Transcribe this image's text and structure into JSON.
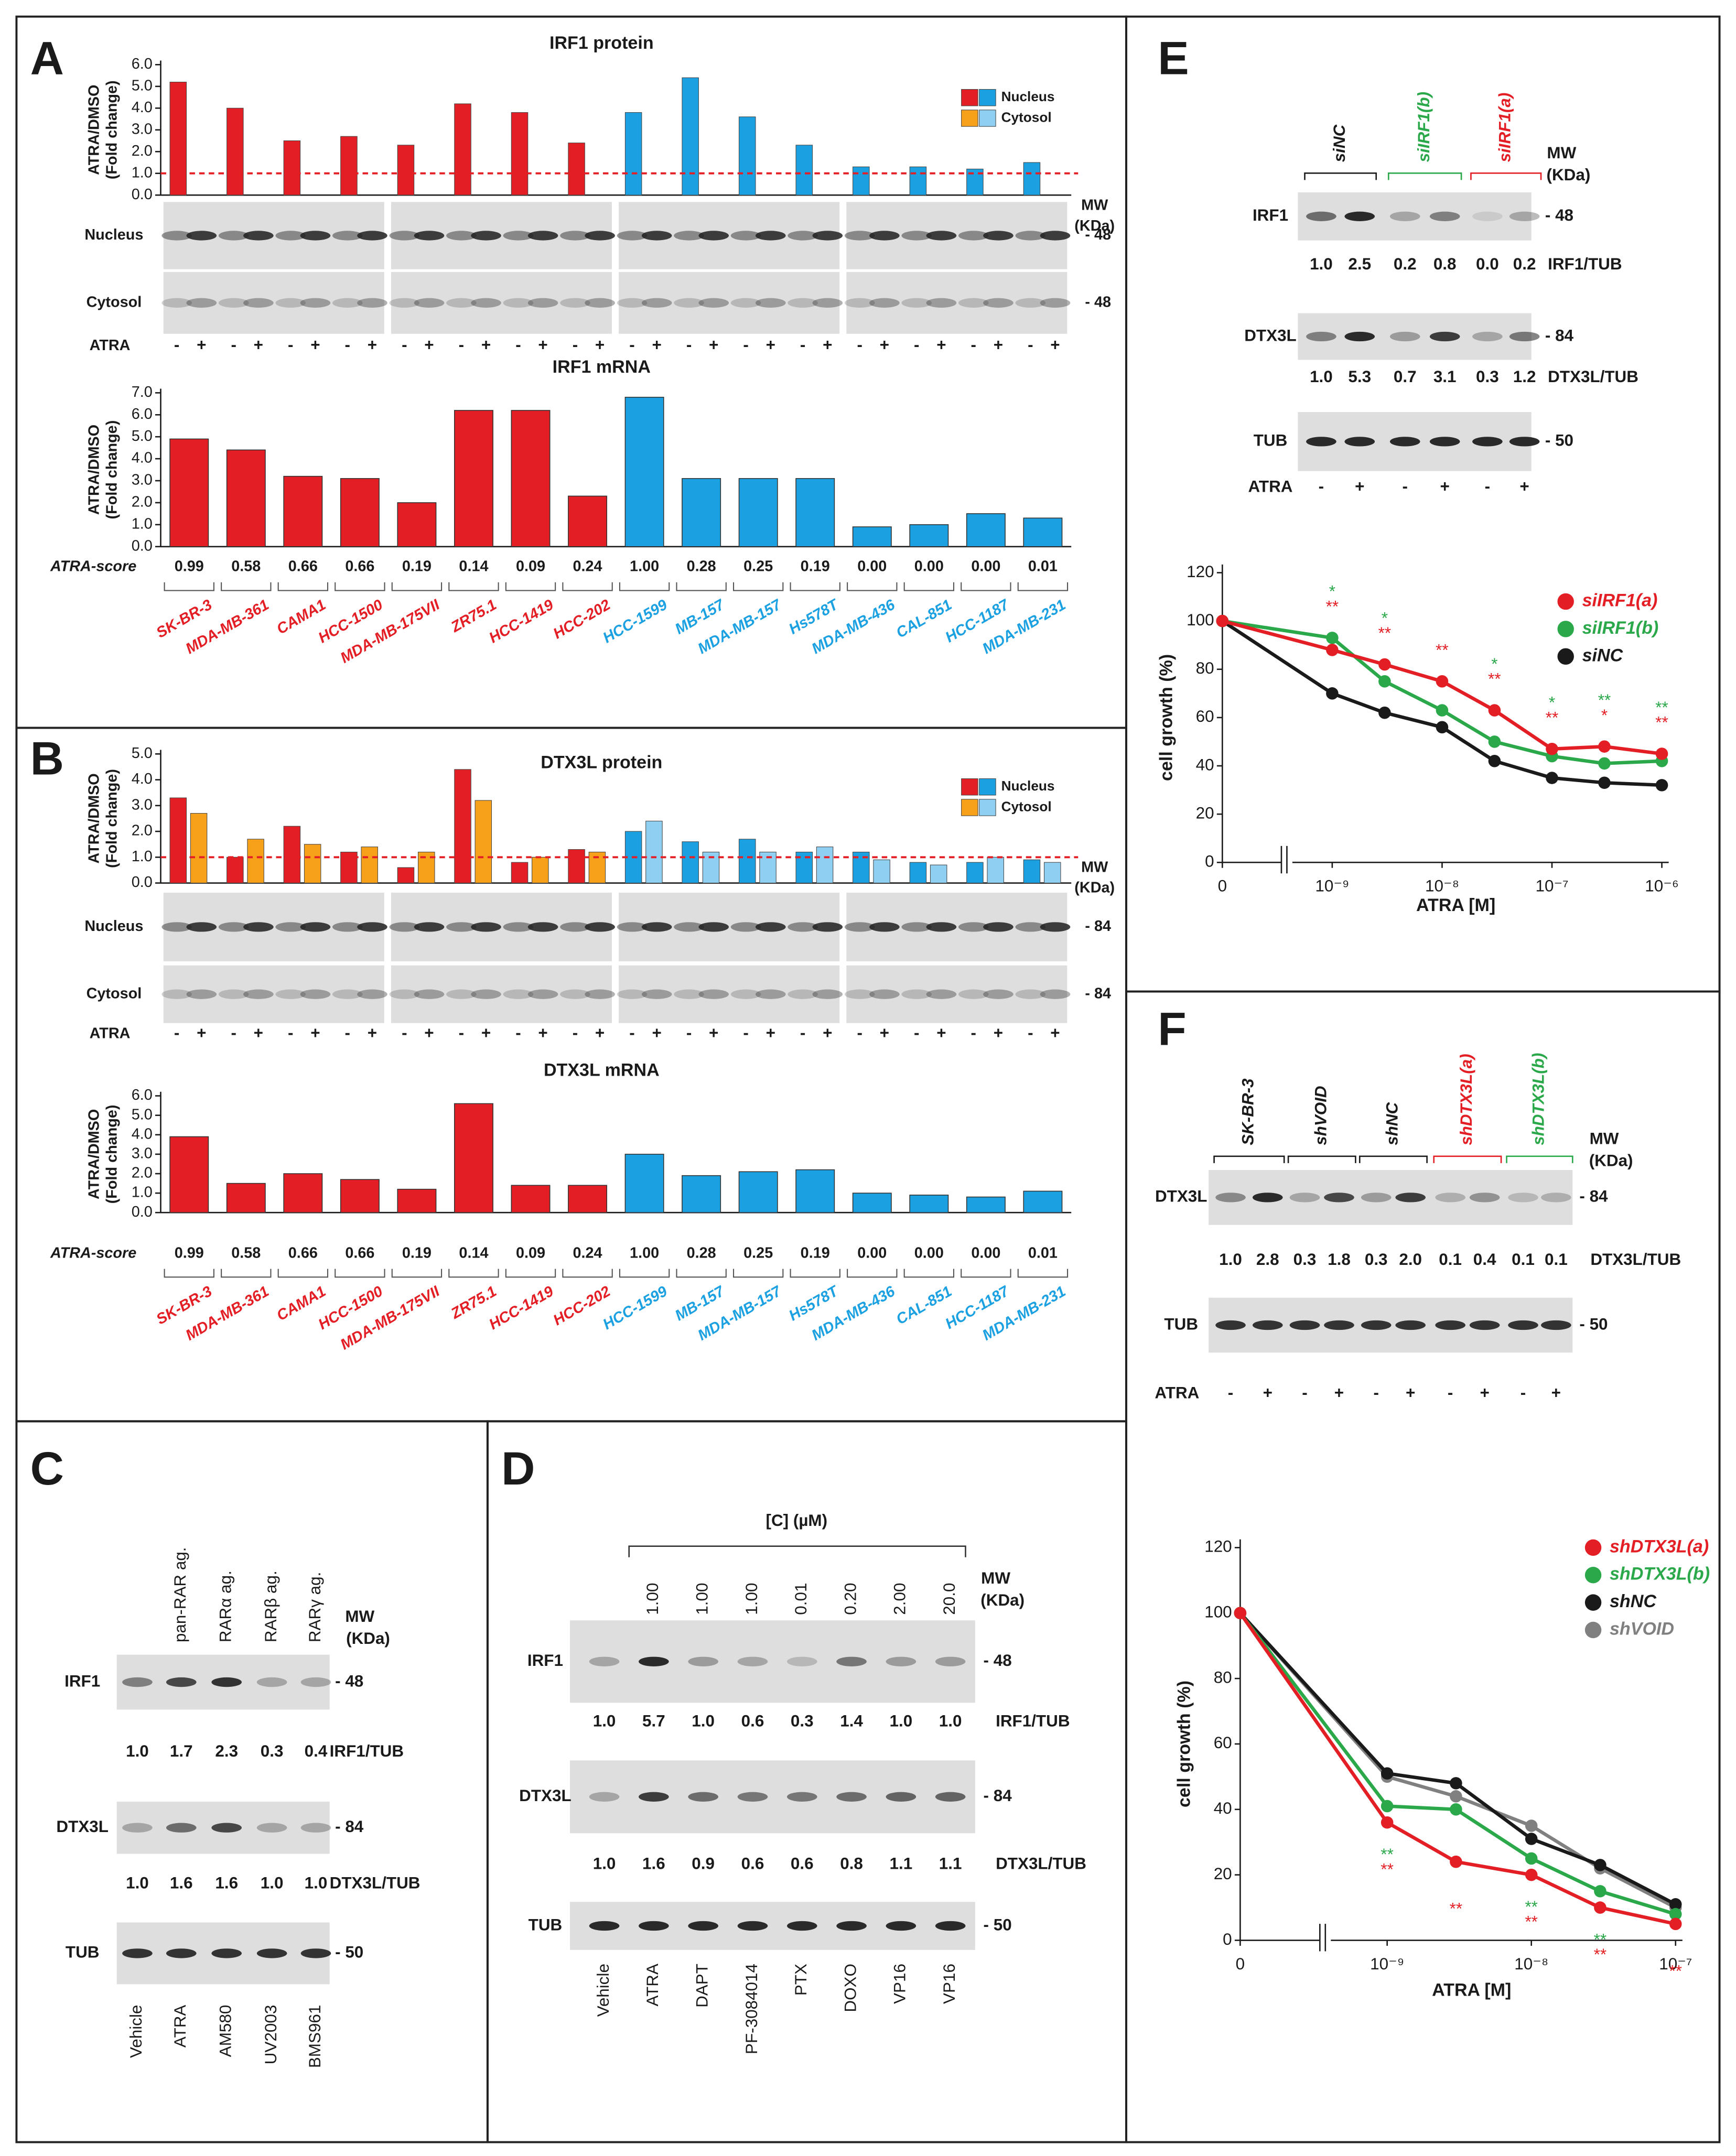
{
  "chart_data": [
    {
      "type": "bar",
      "title": "IRF1 protein",
      "y_label": [
        "ATRA/DMSO",
        "(Fold change)"
      ],
      "categories": [
        null,
        null,
        null,
        null,
        null,
        null,
        null,
        null,
        null,
        null,
        null,
        null,
        null,
        null,
        null,
        null
      ],
      "series": [
        {
          "name": "Nucleus",
          "colors": [
            "#e31e24",
            "#e31e24",
            "#e31e24",
            "#e31e24",
            "#e31e24",
            "#e31e24",
            "#e31e24",
            "#e31e24",
            "#1ba1e2",
            "#1ba1e2",
            "#1ba1e2",
            "#1ba1e2",
            "#1ba1e2",
            "#1ba1e2",
            "#1ba1e2",
            "#1ba1e2"
          ],
          "values": [
            5.2,
            4.0,
            2.5,
            2.7,
            2.3,
            4.2,
            3.8,
            2.4,
            3.8,
            5.4,
            3.6,
            2.3,
            1.3,
            1.3,
            1.2,
            1.5
          ]
        },
        {
          "name": "Cytosol",
          "colors": [
            "#f7a11a",
            "#f7a11a",
            "#f7a11a",
            "#f7a11a",
            "#f7a11a",
            "#f7a11a",
            "#f7a11a",
            "#f7a11a",
            "#8fd0f2",
            "#8fd0f2",
            "#8fd0f2",
            "#8fd0f2",
            "#8fd0f2",
            "#8fd0f2",
            "#8fd0f2",
            "#8fd0f2"
          ],
          "values": [
            0,
            0,
            0,
            0,
            0,
            0,
            0,
            0,
            0,
            0,
            0,
            0,
            0,
            0,
            0,
            0
          ]
        }
      ],
      "ylim": [
        0,
        6
      ],
      "yticks": [
        {
          "value": 0,
          "label": "0.0"
        },
        {
          "value": 1,
          "label": "1.0"
        },
        {
          "value": 2,
          "label": "2.0"
        },
        {
          "value": 3,
          "label": "3.0"
        },
        {
          "value": 4,
          "label": "4.0"
        },
        {
          "value": 5,
          "label": "5.0"
        },
        {
          "value": 6,
          "label": "6.0"
        }
      ],
      "reference_line": 1,
      "reference_color": "#e31e24",
      "legend": "upper right"
    },
    {
      "type": "bar",
      "title": "IRF1 mRNA",
      "y_label": [
        "ATRA/DMSO",
        "(Fold change)"
      ],
      "categories": [
        "SK-BR-3",
        "MDA-MB-361",
        "CAMA1",
        "HCC-1500",
        "MDA-MB-175VII",
        "ZR75.1",
        "HCC-1419",
        "HCC-202",
        "HCC-1599",
        "MB-157",
        "MDA-MB-157",
        "Hs578T",
        "MDA-MB-436",
        "CAL-851",
        "HCC-1187",
        "MDA-MB-231"
      ],
      "label_colors": [
        "#e31e24",
        "#e31e24",
        "#e31e24",
        "#e31e24",
        "#e31e24",
        "#e31e24",
        "#e31e24",
        "#e31e24",
        "#1ba1e2",
        "#1ba1e2",
        "#1ba1e2",
        "#1ba1e2",
        "#1ba1e2",
        "#1ba1e2",
        "#1ba1e2",
        "#1ba1e2"
      ],
      "colors": [
        "#e31e24",
        "#e31e24",
        "#e31e24",
        "#e31e24",
        "#e31e24",
        "#e31e24",
        "#e31e24",
        "#e31e24",
        "#1ba1e2",
        "#1ba1e2",
        "#1ba1e2",
        "#1ba1e2",
        "#1ba1e2",
        "#1ba1e2",
        "#1ba1e2",
        "#1ba1e2"
      ],
      "values": [
        4.9,
        4.4,
        3.2,
        3.1,
        2.0,
        6.2,
        6.2,
        2.3,
        6.8,
        3.1,
        3.1,
        3.1,
        0.9,
        1.0,
        1.5,
        1.3
      ],
      "ylim": [
        0,
        7
      ],
      "yticks": [
        {
          "value": 0,
          "label": "0.0"
        },
        {
          "value": 1,
          "label": "1.0"
        },
        {
          "value": 2,
          "label": "2.0"
        },
        {
          "value": 3,
          "label": "3.0"
        },
        {
          "value": 4,
          "label": "4.0"
        },
        {
          "value": 5,
          "label": "5.0"
        },
        {
          "value": 6,
          "label": "6.0"
        },
        {
          "value": 7,
          "label": "7.0"
        }
      ],
      "score_label": "ATRA-score",
      "scores": [
        "0.99",
        "0.58",
        "0.66",
        "0.66",
        "0.19",
        "0.14",
        "0.09",
        "0.24",
        "1.00",
        "0.28",
        "0.25",
        "0.19",
        "0.00",
        "0.00",
        "0.00",
        "0.01"
      ]
    },
    {
      "type": "bar",
      "title": "DTX3L protein",
      "y_label": [
        "ATRA/DMSO",
        "(Fold change)"
      ],
      "categories": [
        null,
        null,
        null,
        null,
        null,
        null,
        null,
        null,
        null,
        null,
        null,
        null,
        null,
        null,
        null,
        null
      ],
      "series": [
        {
          "name": "Nucleus",
          "colors": [
            "#e31e24",
            "#e31e24",
            "#e31e24",
            "#e31e24",
            "#e31e24",
            "#e31e24",
            "#e31e24",
            "#e31e24",
            "#1ba1e2",
            "#1ba1e2",
            "#1ba1e2",
            "#1ba1e2",
            "#1ba1e2",
            "#1ba1e2",
            "#1ba1e2",
            "#1ba1e2"
          ],
          "values": [
            3.3,
            1.0,
            2.2,
            1.2,
            0.6,
            4.4,
            0.8,
            1.3,
            2.0,
            1.6,
            1.7,
            1.2,
            1.2,
            0.8,
            0.8,
            0.9
          ]
        },
        {
          "name": "Cytosol",
          "colors": [
            "#f7a11a",
            "#f7a11a",
            "#f7a11a",
            "#f7a11a",
            "#f7a11a",
            "#f7a11a",
            "#f7a11a",
            "#f7a11a",
            "#8fd0f2",
            "#8fd0f2",
            "#8fd0f2",
            "#8fd0f2",
            "#8fd0f2",
            "#8fd0f2",
            "#8fd0f2",
            "#8fd0f2"
          ],
          "values": [
            2.7,
            1.7,
            1.5,
            1.4,
            1.2,
            3.2,
            1.0,
            1.2,
            2.4,
            1.2,
            1.2,
            1.4,
            0.9,
            0.7,
            1.0,
            0.8
          ]
        }
      ],
      "ylim": [
        0,
        5
      ],
      "yticks": [
        {
          "value": 0,
          "label": "0.0"
        },
        {
          "value": 1,
          "label": "1.0"
        },
        {
          "value": 2,
          "label": "2.0"
        },
        {
          "value": 3,
          "label": "3.0"
        },
        {
          "value": 4,
          "label": "4.0"
        },
        {
          "value": 5,
          "label": "5.0"
        }
      ],
      "reference_line": 1,
      "reference_color": "#e31e24",
      "legend": "upper right"
    },
    {
      "type": "bar",
      "title": "DTX3L mRNA",
      "y_label": [
        "ATRA/DMSO",
        "(Fold change)"
      ],
      "categories": [
        "SK-BR-3",
        "MDA-MB-361",
        "CAMA1",
        "HCC-1500",
        "MDA-MB-175VII",
        "ZR75.1",
        "HCC-1419",
        "HCC-202",
        "HCC-1599",
        "MB-157",
        "MDA-MB-157",
        "Hs578T",
        "MDA-MB-436",
        "CAL-851",
        "HCC-1187",
        "MDA-MB-231"
      ],
      "label_colors": [
        "#e31e24",
        "#e31e24",
        "#e31e24",
        "#e31e24",
        "#e31e24",
        "#e31e24",
        "#e31e24",
        "#e31e24",
        "#1ba1e2",
        "#1ba1e2",
        "#1ba1e2",
        "#1ba1e2",
        "#1ba1e2",
        "#1ba1e2",
        "#1ba1e2",
        "#1ba1e2"
      ],
      "colors": [
        "#e31e24",
        "#e31e24",
        "#e31e24",
        "#e31e24",
        "#e31e24",
        "#e31e24",
        "#e31e24",
        "#e31e24",
        "#1ba1e2",
        "#1ba1e2",
        "#1ba1e2",
        "#1ba1e2",
        "#1ba1e2",
        "#1ba1e2",
        "#1ba1e2",
        "#1ba1e2"
      ],
      "values": [
        3.9,
        1.5,
        2.0,
        1.7,
        1.2,
        5.6,
        1.4,
        1.4,
        3.0,
        1.9,
        2.1,
        2.2,
        1.0,
        0.9,
        0.8,
        1.1
      ],
      "ylim": [
        0,
        6
      ],
      "yticks": [
        {
          "value": 0,
          "label": "0.0"
        },
        {
          "value": 1,
          "label": "1.0"
        },
        {
          "value": 2,
          "label": "2.0"
        },
        {
          "value": 3,
          "label": "3.0"
        },
        {
          "value": 4,
          "label": "4.0"
        },
        {
          "value": 5,
          "label": "5.0"
        },
        {
          "value": 6,
          "label": "6.0"
        }
      ],
      "score_label": "ATRA-score",
      "scores": [
        "0.99",
        "0.58",
        "0.66",
        "0.66",
        "0.19",
        "0.14",
        "0.09",
        "0.24",
        "1.00",
        "0.28",
        "0.25",
        "0.19",
        "0.00",
        "0.00",
        "0.00",
        "0.01"
      ]
    },
    {
      "type": "line",
      "x_label": "ATRA [M]",
      "y_label": "cell growth (%)",
      "xscale": "log",
      "x_break": true,
      "x": [
        0,
        1e-09,
        3e-09,
        1e-08,
        3e-08,
        1e-07,
        3e-07,
        1e-06
      ],
      "xlim": [
        0,
        1e-06
      ],
      "xticks": [
        0,
        {
          "value": 1e-09,
          "label": "10⁻⁹"
        },
        {
          "value": 1e-08,
          "label": "10⁻⁸"
        },
        {
          "value": 1e-07,
          "label": "10⁻⁷"
        },
        {
          "value": 1e-06,
          "label": "10⁻⁶"
        }
      ],
      "ylim": [
        0,
        120
      ],
      "yticks": [
        0,
        20,
        40,
        60,
        80,
        100,
        120
      ],
      "legend": "upper right",
      "series": [
        {
          "name": "siIRF1(a)",
          "color": "#e31e24",
          "values": [
            100,
            88,
            82,
            75,
            63,
            47,
            48,
            45
          ],
          "significance": [
            null,
            "**",
            "**",
            "**",
            "**",
            "**",
            "*",
            "**"
          ]
        },
        {
          "name": "siIRF1(b)",
          "color": "#2aa84a",
          "values": [
            100,
            93,
            75,
            63,
            50,
            44,
            41,
            42
          ],
          "significance": [
            null,
            "*",
            "*",
            null,
            "*",
            "*",
            "**",
            "**"
          ]
        },
        {
          "name": "siNC",
          "color": "#1a1a1a",
          "values": [
            100,
            70,
            62,
            56,
            42,
            35,
            33,
            32
          ]
        }
      ]
    },
    {
      "type": "line",
      "x_label": "ATRA [M]",
      "y_label": "cell growth (%)",
      "xscale": "log",
      "x_break": true,
      "x": [
        0,
        1e-09,
        3e-09,
        1e-08,
        3e-08,
        1e-07
      ],
      "xlim": [
        0,
        1e-07
      ],
      "xticks": [
        0,
        {
          "value": 1e-09,
          "label": "10⁻⁹"
        },
        {
          "value": 1e-08,
          "label": "10⁻⁸"
        },
        {
          "value": 1e-07,
          "label": "10⁻⁷"
        }
      ],
      "ylim": [
        0,
        120
      ],
      "yticks": [
        0,
        20,
        40,
        60,
        80,
        100,
        120
      ],
      "legend": "upper right",
      "series": [
        {
          "name": "shDTX3L(a)",
          "color": "#e31e24",
          "values": [
            100,
            36,
            24,
            20,
            10,
            5
          ],
          "significance": [
            null,
            "**",
            "**",
            "**",
            "**",
            "**"
          ]
        },
        {
          "name": "shDTX3L(b)",
          "color": "#2aa84a",
          "values": [
            100,
            41,
            40,
            25,
            15,
            8
          ],
          "significance": [
            null,
            "**",
            null,
            "**",
            "**",
            null
          ]
        },
        {
          "name": "shNC",
          "color": "#1a1a1a",
          "values": [
            100,
            51,
            48,
            31,
            23,
            11
          ]
        },
        {
          "name": "shVOID",
          "color": "#808080",
          "values": [
            100,
            50,
            44,
            35,
            22,
            10
          ]
        }
      ]
    }
  ],
  "mw": [
    "MW",
    "(KDa)"
  ],
  "panel_a": {
    "letter": "A",
    "rows": [
      "Nucleus",
      "Cytosol"
    ],
    "mw_values": [
      "- 48",
      "- 48"
    ],
    "treatment": "ATRA",
    "signs": [
      "-",
      "+"
    ]
  },
  "panel_b": {
    "letter": "B",
    "rows": [
      "Nucleus",
      "Cytosol"
    ],
    "mw_values": [
      "- 84",
      "- 84"
    ],
    "treatment": "ATRA",
    "signs": [
      "-",
      "+"
    ]
  },
  "panel_c": {
    "letter": "C",
    "headers": [
      "pan-RAR ag.",
      "RARα ag.",
      "RARβ ag.",
      "RARγ ag."
    ],
    "rows": [
      {
        "label": "IRF1",
        "mw": "- 48",
        "values": [
          "1.0",
          "1.7",
          "2.3",
          "0.3",
          "0.4"
        ],
        "ratio": "IRF1/TUB"
      },
      {
        "label": "DTX3L",
        "mw": "- 84",
        "values": [
          "1.0",
          "1.6",
          "1.6",
          "1.0",
          "1.0"
        ],
        "ratio": "DTX3L/TUB"
      },
      {
        "label": "TUB",
        "mw": "- 50"
      }
    ],
    "lanes": [
      "Vehicle",
      "ATRA",
      "AM580",
      "UV2003",
      "BMS961"
    ]
  },
  "panel_d": {
    "letter": "D",
    "conc_label": "[C] (µM)",
    "concentrations": [
      "1.00",
      "1.00",
      "1.00",
      "0.01",
      "0.20",
      "2.00",
      "20.0"
    ],
    "rows": [
      {
        "label": "IRF1",
        "mw": "- 48",
        "values": [
          "1.0",
          "5.7",
          "1.0",
          "0.6",
          "0.3",
          "1.4",
          "1.0",
          "1.0"
        ],
        "ratio": "IRF1/TUB"
      },
      {
        "label": "DTX3L",
        "mw": "- 84",
        "values": [
          "1.0",
          "1.6",
          "0.9",
          "0.6",
          "0.6",
          "0.8",
          "1.1",
          "1.1"
        ],
        "ratio": "DTX3L/TUB"
      },
      {
        "label": "TUB",
        "mw": "- 50"
      }
    ],
    "lanes": [
      "Vehicle",
      "ATRA",
      "DAPT",
      "PF-3084014",
      "PTX",
      "DOXO",
      "VP16",
      "VP16"
    ]
  },
  "panel_e": {
    "letter": "E",
    "groups": [
      {
        "name": "siNC",
        "color": "#1a1a1a"
      },
      {
        "name": "siIRF1(b)",
        "color": "#2aa84a"
      },
      {
        "name": "siIRF1(a)",
        "color": "#e31e24"
      }
    ],
    "rows": [
      {
        "label": "IRF1",
        "mw": "- 48",
        "values": [
          "1.0",
          "2.5",
          "0.2",
          "0.8",
          "0.0",
          "0.2"
        ],
        "ratio": "IRF1/TUB"
      },
      {
        "label": "DTX3L",
        "mw": "- 84",
        "values": [
          "1.0",
          "5.3",
          "0.7",
          "3.1",
          "0.3",
          "1.2"
        ],
        "ratio": "DTX3L/TUB"
      },
      {
        "label": "TUB",
        "mw": "- 50"
      }
    ],
    "treatment": "ATRA",
    "signs": [
      "-",
      "+"
    ]
  },
  "panel_f": {
    "letter": "F",
    "groups": [
      {
        "name": "SK-BR-3",
        "color": "#1a1a1a"
      },
      {
        "name": "shVOID",
        "color": "#1a1a1a"
      },
      {
        "name": "shNC",
        "color": "#1a1a1a"
      },
      {
        "name": "shDTX3L(a)",
        "color": "#e31e24"
      },
      {
        "name": "shDTX3L(b)",
        "color": "#2aa84a"
      }
    ],
    "rows": [
      {
        "label": "DTX3L",
        "mw": "- 84",
        "values": [
          "1.0",
          "2.8",
          "0.3",
          "1.8",
          "0.3",
          "2.0",
          "0.1",
          "0.4",
          "0.1",
          "0.1"
        ],
        "ratio": "DTX3L/TUB"
      },
      {
        "label": "TUB",
        "mw": "- 50"
      }
    ],
    "treatment": "ATRA",
    "signs": [
      "-",
      "+"
    ]
  }
}
